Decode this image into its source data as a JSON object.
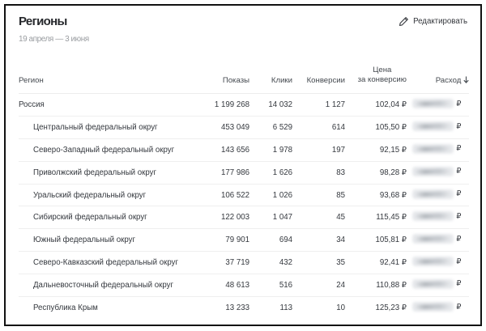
{
  "page": {
    "title": "Регионы",
    "date_range": "19 апреля — 3 июня",
    "edit_label": "Редактировать"
  },
  "table": {
    "columns": {
      "region": "Регион",
      "impressions": "Показы",
      "clicks": "Клики",
      "conversions": "Конверсии",
      "cpa": "Цена\nза конверсию",
      "spend": "Расход"
    },
    "sort": {
      "column": "Расход",
      "direction": "desc",
      "icon": "arrow-down"
    },
    "currency": "₽",
    "rows": [
      {
        "region": "Россия",
        "level": 0,
        "impressions": "1 199 268",
        "clicks": "14 032",
        "conversions": "1 127",
        "cpa": "102,04 ₽",
        "spend_redacted": true
      },
      {
        "region": "Центральный федеральный округ",
        "level": 1,
        "impressions": "453 049",
        "clicks": "6 529",
        "conversions": "614",
        "cpa": "105,50 ₽",
        "spend_redacted": true
      },
      {
        "region": "Северо-Западный федеральный округ",
        "level": 1,
        "impressions": "143 656",
        "clicks": "1 978",
        "conversions": "197",
        "cpa": "92,15 ₽",
        "spend_redacted": true
      },
      {
        "region": "Приволжский федеральный округ",
        "level": 1,
        "impressions": "177 986",
        "clicks": "1 626",
        "conversions": "83",
        "cpa": "98,28 ₽",
        "spend_redacted": true
      },
      {
        "region": "Уральский федеральный округ",
        "level": 1,
        "impressions": "106 522",
        "clicks": "1 026",
        "conversions": "85",
        "cpa": "93,68 ₽",
        "spend_redacted": true
      },
      {
        "region": "Сибирский федеральный округ",
        "level": 1,
        "impressions": "122 003",
        "clicks": "1 047",
        "conversions": "45",
        "cpa": "115,45 ₽",
        "spend_redacted": true
      },
      {
        "region": "Южный федеральный округ",
        "level": 1,
        "impressions": "79 901",
        "clicks": "694",
        "conversions": "34",
        "cpa": "105,81 ₽",
        "spend_redacted": true
      },
      {
        "region": "Северо-Кавказский федеральный округ",
        "level": 1,
        "impressions": "37 719",
        "clicks": "432",
        "conversions": "35",
        "cpa": "92,41 ₽",
        "spend_redacted": true
      },
      {
        "region": "Дальневосточный федеральный округ",
        "level": 1,
        "impressions": "48 613",
        "clicks": "516",
        "conversions": "24",
        "cpa": "110,88 ₽",
        "spend_redacted": true
      },
      {
        "region": "Республика Крым",
        "level": 1,
        "impressions": "13 233",
        "clicks": "113",
        "conversions": "10",
        "cpa": "125,23 ₽",
        "spend_redacted": true
      }
    ]
  }
}
